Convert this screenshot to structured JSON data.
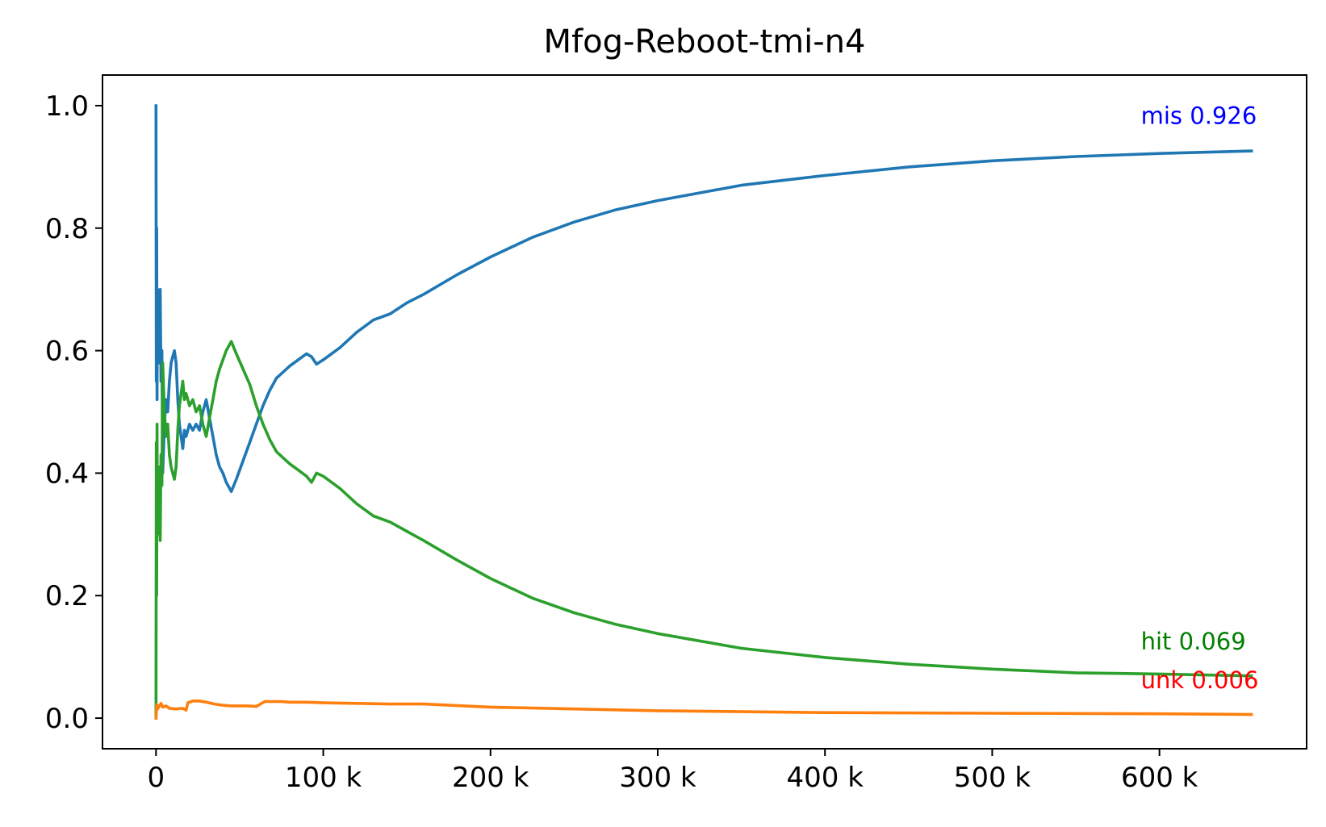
{
  "chart_data": {
    "type": "line",
    "title": "Mfog-Reboot-tmi-n4",
    "xlabel": "",
    "ylabel": "",
    "xlim": [
      -32000,
      688000
    ],
    "ylim": [
      -0.05,
      1.05
    ],
    "x_ticks": [
      0,
      100000,
      200000,
      300000,
      400000,
      500000,
      600000
    ],
    "x_tick_labels": [
      "0",
      "100 k",
      "200 k",
      "300 k",
      "400 k",
      "500 k",
      "600 k"
    ],
    "y_ticks": [
      0.0,
      0.2,
      0.4,
      0.6,
      0.8,
      1.0
    ],
    "y_tick_labels": [
      "0.0",
      "0.2",
      "0.4",
      "0.6",
      "0.8",
      "1.0"
    ],
    "grid": false,
    "legend": "none",
    "series": [
      {
        "key": "mis",
        "color": "#1f77b4",
        "x": [
          0,
          200,
          400,
          600,
          800,
          1000,
          1500,
          2000,
          2500,
          3000,
          3500,
          4000,
          5000,
          6000,
          7000,
          8000,
          9000,
          10000,
          11000,
          12000,
          13000,
          14000,
          15000,
          16000,
          17000,
          18000,
          20000,
          22000,
          24000,
          26000,
          28000,
          30000,
          32000,
          34000,
          36000,
          38000,
          40000,
          42000,
          45000,
          48000,
          52000,
          56000,
          60000,
          64000,
          68000,
          72000,
          76000,
          80000,
          85000,
          90000,
          93000,
          96000,
          100000,
          110000,
          120000,
          130000,
          140000,
          150000,
          160000,
          180000,
          200000,
          225000,
          250000,
          275000,
          300000,
          350000,
          400000,
          450000,
          500000,
          550000,
          600000,
          655000
        ],
        "y": [
          1.0,
          0.55,
          0.8,
          0.52,
          0.7,
          0.6,
          0.66,
          0.58,
          0.7,
          0.55,
          0.6,
          0.4,
          0.48,
          0.52,
          0.5,
          0.55,
          0.58,
          0.59,
          0.6,
          0.58,
          0.52,
          0.48,
          0.46,
          0.44,
          0.47,
          0.46,
          0.48,
          0.47,
          0.48,
          0.47,
          0.5,
          0.52,
          0.49,
          0.46,
          0.43,
          0.41,
          0.4,
          0.385,
          0.37,
          0.39,
          0.42,
          0.45,
          0.48,
          0.51,
          0.535,
          0.555,
          0.565,
          0.575,
          0.585,
          0.595,
          0.59,
          0.578,
          0.585,
          0.605,
          0.63,
          0.65,
          0.66,
          0.678,
          0.692,
          0.724,
          0.753,
          0.785,
          0.81,
          0.83,
          0.845,
          0.87,
          0.886,
          0.9,
          0.91,
          0.917,
          0.922,
          0.926
        ]
      },
      {
        "key": "hit",
        "color": "#2ca02c",
        "x": [
          0,
          200,
          400,
          600,
          800,
          1000,
          1500,
          2000,
          2500,
          3000,
          3500,
          4000,
          5000,
          6000,
          7000,
          8000,
          9000,
          10000,
          11000,
          12000,
          13000,
          14000,
          15000,
          16000,
          17000,
          18000,
          20000,
          22000,
          24000,
          26000,
          28000,
          30000,
          32000,
          34000,
          36000,
          38000,
          40000,
          42000,
          45000,
          48000,
          52000,
          56000,
          60000,
          64000,
          68000,
          72000,
          76000,
          80000,
          85000,
          90000,
          93000,
          96000,
          100000,
          110000,
          120000,
          130000,
          140000,
          150000,
          160000,
          180000,
          200000,
          225000,
          250000,
          275000,
          300000,
          350000,
          400000,
          450000,
          500000,
          550000,
          600000,
          655000
        ],
        "y": [
          0.0,
          0.45,
          0.2,
          0.48,
          0.3,
          0.38,
          0.32,
          0.41,
          0.29,
          0.43,
          0.38,
          0.58,
          0.5,
          0.46,
          0.48,
          0.43,
          0.41,
          0.4,
          0.39,
          0.41,
          0.47,
          0.51,
          0.53,
          0.55,
          0.52,
          0.53,
          0.51,
          0.52,
          0.5,
          0.51,
          0.48,
          0.46,
          0.49,
          0.52,
          0.55,
          0.57,
          0.585,
          0.6,
          0.615,
          0.595,
          0.57,
          0.545,
          0.51,
          0.48,
          0.455,
          0.435,
          0.425,
          0.415,
          0.405,
          0.395,
          0.385,
          0.4,
          0.395,
          0.375,
          0.35,
          0.33,
          0.32,
          0.305,
          0.29,
          0.258,
          0.228,
          0.196,
          0.172,
          0.153,
          0.138,
          0.114,
          0.099,
          0.088,
          0.08,
          0.074,
          0.072,
          0.069
        ]
      },
      {
        "key": "unk",
        "color": "#ff7f0e",
        "x": [
          0,
          500,
          1000,
          2000,
          3000,
          4000,
          6000,
          8000,
          12000,
          16000,
          18000,
          19000,
          22000,
          26000,
          30000,
          35000,
          40000,
          45000,
          50000,
          55000,
          60000,
          65000,
          70000,
          75000,
          80000,
          90000,
          100000,
          120000,
          140000,
          160000,
          200000,
          250000,
          300000,
          400000,
          500000,
          600000,
          655000
        ],
        "y": [
          0.0,
          0.022,
          0.015,
          0.02,
          0.024,
          0.018,
          0.02,
          0.016,
          0.015,
          0.016,
          0.013,
          0.025,
          0.028,
          0.028,
          0.026,
          0.023,
          0.021,
          0.02,
          0.02,
          0.02,
          0.019,
          0.027,
          0.027,
          0.027,
          0.026,
          0.026,
          0.025,
          0.024,
          0.023,
          0.023,
          0.018,
          0.015,
          0.012,
          0.009,
          0.008,
          0.007,
          0.006
        ]
      }
    ],
    "end_labels": [
      {
        "key": "mis",
        "text": "mis 0.926",
        "color": "#0000ff",
        "y": 0.97
      },
      {
        "key": "hit",
        "text": "hit 0.069",
        "color": "#008000",
        "y": 0.112
      },
      {
        "key": "unk",
        "text": "unk 0.006",
        "color": "#ff0000",
        "y": 0.049
      }
    ]
  }
}
